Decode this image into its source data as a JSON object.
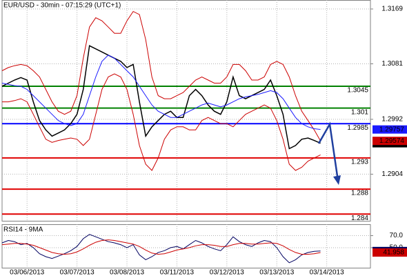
{
  "chart_data": [
    {
      "type": "line",
      "title": "EUR/USD - 30min - 07:15:29 (UTC+1)",
      "ylim": [
        1.28292,
        1.31834
      ],
      "xlim": [
        0,
        59
      ],
      "yticks": [
        1.2904,
        1.2992,
        1.3081,
        1.3169
      ],
      "grid": true,
      "levels": [
        {
          "value": 1.3045,
          "color": "#008000"
        },
        {
          "value": 1.301,
          "color": "#008000"
        },
        {
          "value": 1.2985,
          "color": "#0000ff"
        },
        {
          "value": 1.293,
          "color": "#e00000"
        },
        {
          "value": 1.288,
          "color": "#e00000"
        },
        {
          "value": 1.284,
          "color": "#e00000"
        }
      ],
      "series": [
        {
          "color": "#000000",
          "price_tag": true,
          "values": [
            1.3045,
            1.305,
            1.3055,
            1.3059,
            1.3055,
            1.302,
            1.299,
            1.2975,
            1.2965,
            1.297,
            1.2975,
            1.2985,
            1.3,
            1.304,
            1.311,
            1.3105,
            1.31,
            1.3095,
            1.309,
            1.3085,
            1.3075,
            1.308,
            1.302,
            1.2965,
            1.298,
            1.299,
            1.3,
            1.3005,
            1.2995,
            1.2995,
            1.303,
            1.304,
            1.303,
            1.3015,
            1.3005,
            1.3,
            1.302,
            1.306,
            1.303,
            1.3025,
            1.303,
            1.3035,
            1.304,
            1.3055,
            1.303,
            1.3,
            1.2945,
            1.295,
            1.296,
            1.2962,
            1.2958,
            1.29536
          ]
        },
        {
          "color": "#cc0000",
          "price_tag": true,
          "values": [
            1.307,
            1.3075,
            1.3078,
            1.308,
            1.3078,
            1.307,
            1.306,
            1.304,
            1.302,
            1.3005,
            1.3,
            1.3005,
            1.303,
            1.309,
            1.314,
            1.3155,
            1.315,
            1.314,
            1.313,
            1.313,
            1.315,
            1.3165,
            1.316,
            1.312,
            1.306,
            1.303,
            1.3025,
            1.3025,
            1.303,
            1.3035,
            1.3045,
            1.3055,
            1.306,
            1.3055,
            1.305,
            1.305,
            1.306,
            1.308,
            1.308,
            1.307,
            1.3055,
            1.3055,
            1.306,
            1.308,
            1.3085,
            1.308,
            1.306,
            1.303,
            1.3005,
            1.299,
            1.2975,
            1.29574
          ]
        },
        {
          "color": "#cc0000",
          "price_tag": false,
          "values": [
            1.302,
            1.302,
            1.3022,
            1.3025,
            1.302,
            1.3,
            1.298,
            1.296,
            1.2955,
            1.2958,
            1.296,
            1.2962,
            1.296,
            1.295,
            1.296,
            1.3,
            1.304,
            1.306,
            1.3065,
            1.306,
            1.304,
            1.3,
            1.295,
            1.292,
            1.291,
            1.293,
            1.296,
            1.2975,
            1.298,
            1.298,
            1.2975,
            1.2975,
            1.299,
            1.2995,
            1.299,
            1.2985,
            1.2985,
            1.298,
            1.299,
            1.3,
            1.3005,
            1.301,
            1.3015,
            1.301,
            1.299,
            1.296,
            1.292,
            1.291,
            1.2915,
            1.2925,
            1.293,
            1.2935
          ]
        },
        {
          "color": "#1a1aff",
          "price_tag": true,
          "values": [
            1.305,
            1.3048,
            1.3046,
            1.3045,
            1.304,
            1.303,
            1.302,
            1.301,
            1.3,
            1.299,
            1.2985,
            1.2982,
            1.2985,
            1.3,
            1.303,
            1.306,
            1.3085,
            1.3095,
            1.309,
            1.308,
            1.307,
            1.306,
            1.3045,
            1.303,
            1.3015,
            1.3005,
            1.3,
            1.2995,
            1.2995,
            1.3,
            1.3005,
            1.301,
            1.3015,
            1.3018,
            1.3015,
            1.3012,
            1.3015,
            1.302,
            1.3025,
            1.3028,
            1.303,
            1.3032,
            1.3035,
            1.3038,
            1.3035,
            1.3025,
            1.301,
            1.2995,
            1.2985,
            1.298,
            1.2977,
            1.29757
          ]
        }
      ]
    },
    {
      "type": "line",
      "title": "RSI14 - 9MA",
      "ylim": [
        16.7,
        88.9
      ],
      "xlim": [
        0,
        59
      ],
      "yticks": [
        {
          "value": 50,
          "label": "50.0"
        },
        {
          "value": 70,
          "label": "70.0"
        }
      ],
      "grid": true,
      "xticks": [
        {
          "value": 4,
          "label": "03/06/2013"
        },
        {
          "value": 12,
          "label": "03/07/2013"
        },
        {
          "value": 20,
          "label": "03/08/2013"
        },
        {
          "value": 28,
          "label": "03/11/2013"
        },
        {
          "value": 36,
          "label": "03/12/2013"
        },
        {
          "value": 44,
          "label": "03/13/2013"
        },
        {
          "value": 52,
          "label": "03/14/2013"
        }
      ],
      "series": [
        {
          "color": "#000060",
          "price_tag": true,
          "values": [
            58,
            62,
            60,
            55,
            57,
            50,
            40,
            35,
            32,
            36,
            40,
            45,
            52,
            65,
            72,
            68,
            64,
            60,
            58,
            55,
            50,
            55,
            38,
            30,
            35,
            42,
            45,
            50,
            52,
            48,
            55,
            62,
            58,
            52,
            48,
            45,
            55,
            68,
            60,
            55,
            52,
            58,
            62,
            60,
            50,
            35,
            25,
            30,
            38,
            42,
            44,
            44.4099
          ]
        },
        {
          "color": "#cc0000",
          "price_tag": true,
          "values": [
            55,
            56,
            57,
            57,
            56,
            54,
            50,
            46,
            42,
            40,
            39,
            40,
            43,
            48,
            54,
            59,
            62,
            63,
            62,
            60,
            58,
            56,
            52,
            46,
            41,
            39,
            40,
            43,
            46,
            48,
            50,
            53,
            55,
            55,
            54,
            52,
            52,
            55,
            57,
            57,
            56,
            56,
            57,
            58,
            57,
            53,
            47,
            42,
            39,
            39,
            40,
            41.958
          ]
        }
      ]
    }
  ]
}
